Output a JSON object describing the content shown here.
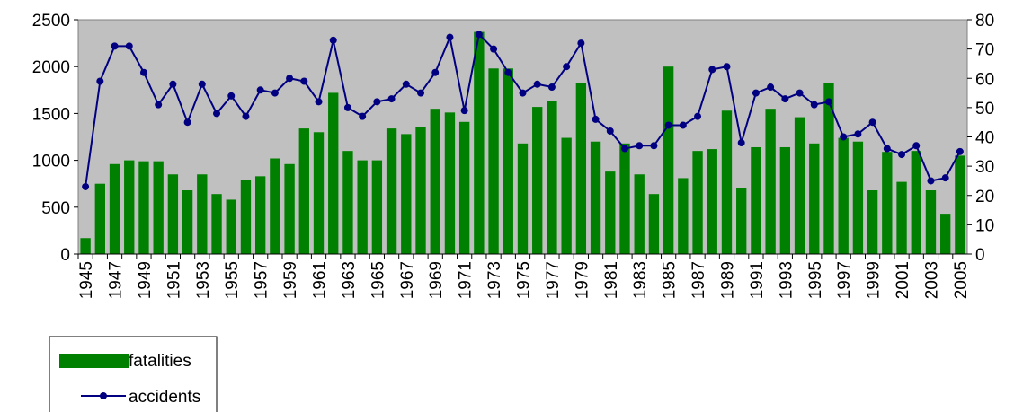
{
  "chart_data": {
    "type": "bar_line",
    "categories": [
      "1945",
      null,
      "1947",
      null,
      "1949",
      null,
      "1951",
      null,
      "1953",
      null,
      "1955",
      null,
      "1957",
      null,
      "1959",
      null,
      "1961",
      null,
      "1963",
      null,
      "1965",
      null,
      "1967",
      null,
      "1969",
      null,
      "1971",
      null,
      "1973",
      null,
      "1975",
      null,
      "1977",
      null,
      "1979",
      null,
      "1981",
      null,
      "1983",
      null,
      "1985",
      null,
      "1987",
      null,
      "1989",
      null,
      "1991",
      null,
      "1993",
      null,
      "1995",
      null,
      "1997",
      null,
      "1999",
      null,
      "2001",
      null,
      "2003",
      null,
      "2005"
    ],
    "series": [
      {
        "name": "fatalities",
        "type": "bar",
        "color": "#008000",
        "values": [
          170,
          750,
          960,
          1000,
          990,
          990,
          850,
          680,
          850,
          640,
          580,
          790,
          830,
          1020,
          960,
          1340,
          1300,
          1720,
          1100,
          1000,
          1000,
          1340,
          1280,
          1360,
          1550,
          1510,
          1410,
          2370,
          1980,
          1980,
          1180,
          1570,
          1630,
          1240,
          1820,
          1200,
          880,
          1180,
          850,
          640,
          2000,
          810,
          1100,
          1120,
          1530,
          700,
          1140,
          1550,
          1140,
          1460,
          1180,
          1820,
          1240,
          1200,
          680,
          1090,
          770,
          1100,
          680,
          430,
          1050
        ]
      },
      {
        "name": "accidents",
        "type": "line",
        "axis": "y2",
        "color": "#000080",
        "values": [
          23,
          59,
          71,
          71,
          62,
          51,
          58,
          45,
          58,
          48,
          54,
          47,
          56,
          55,
          60,
          59,
          52,
          73,
          50,
          47,
          52,
          53,
          58,
          55,
          62,
          74,
          49,
          75,
          70,
          62,
          55,
          58,
          57,
          64,
          72,
          46,
          42,
          36,
          37,
          37,
          44,
          44,
          47,
          63,
          64,
          38,
          55,
          57,
          53,
          55,
          51,
          52,
          40,
          41,
          45,
          36,
          34,
          37,
          25,
          26,
          35
        ]
      }
    ],
    "ylim": [
      0,
      2500
    ],
    "yticks": [
      0,
      500,
      1000,
      1500,
      2000,
      2500
    ],
    "y2lim": [
      0,
      80
    ],
    "y2ticks": [
      0,
      10,
      20,
      30,
      40,
      50,
      60,
      70,
      80
    ],
    "plot_background": "#c0c0c0",
    "legend": "lower-left"
  }
}
